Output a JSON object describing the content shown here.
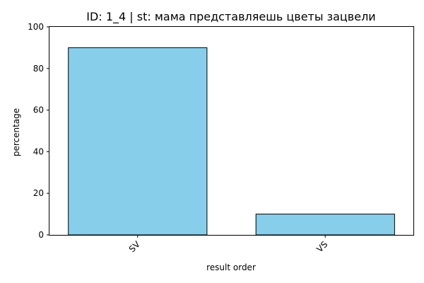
{
  "chart_data": {
    "type": "bar",
    "title": "ID: 1_4 | st: мама представляешь цветы зацвели",
    "xlabel": "result order",
    "ylabel": "percentage",
    "categories": [
      "SV",
      "VS"
    ],
    "values": [
      90,
      10
    ],
    "ylim": [
      0,
      100
    ],
    "yticks": [
      0,
      20,
      40,
      60,
      80,
      100
    ],
    "grid": false,
    "legend": "none",
    "colors": {
      "bar_fill": "#87CEEB",
      "bar_edge": "#000000"
    }
  }
}
